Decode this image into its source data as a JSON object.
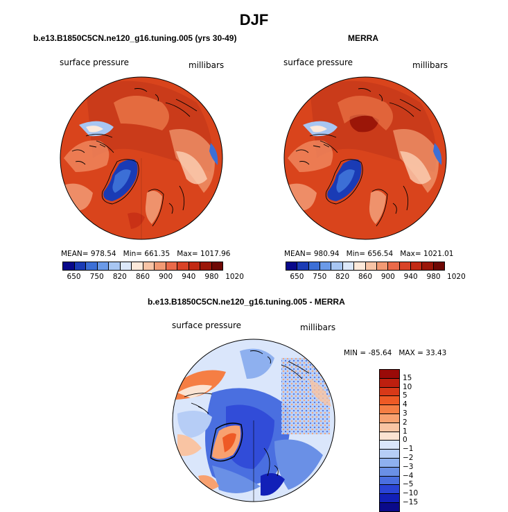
{
  "title": "DJF",
  "panels": [
    {
      "title": "b.e13.B1850C5CN.ne120_g16.tuning.005 (yrs 30-49)",
      "variable": "surface pressure",
      "units": "millibars",
      "mean_label": "MEAN=",
      "mean": "978.54",
      "min_label": "Min=",
      "min": "661.35",
      "max_label": "Max=",
      "max": "1017.96"
    },
    {
      "title": "MERRA",
      "variable": "surface pressure",
      "units": "millibars",
      "mean_label": "MEAN=",
      "mean": "980.94",
      "min_label": "Min=",
      "min": "656.54",
      "max_label": "Max=",
      "max": "1021.01"
    }
  ],
  "diff_panel": {
    "title": "b.e13.B1850C5CN.ne120_g16.tuning.005 - MERRA",
    "variable": "surface pressure",
    "units": "millibars",
    "min_label": "MIN =",
    "min": "-85.64",
    "max_label": "MAX =",
    "max": "33.43"
  },
  "abs_colorbar": {
    "tick_labels": [
      "650",
      "750",
      "820",
      "860",
      "900",
      "940",
      "980",
      "1020"
    ],
    "colors": [
      "#08088a",
      "#1a3bb5",
      "#3c6fd6",
      "#6b9ae8",
      "#a8c6f2",
      "#dce8fa",
      "#fde9da",
      "#f8c4a6",
      "#f29a74",
      "#ea6a4a",
      "#d94327",
      "#c22a14",
      "#9b1608",
      "#6e0804"
    ]
  },
  "diff_colorbar": {
    "tick_labels": [
      "15",
      "10",
      "5",
      "4",
      "3",
      "2",
      "1",
      "0",
      "−1",
      "−2",
      "−3",
      "−4",
      "−5",
      "−10",
      "−15"
    ],
    "colors": [
      "#9a0a08",
      "#bd1f0f",
      "#d83918",
      "#ee5a25",
      "#f57e44",
      "#f8a170",
      "#f9c4a3",
      "#fbe3d2",
      "#dae6fb",
      "#b6cdf6",
      "#8eb0ef",
      "#6a90e6",
      "#4a6fe0",
      "#2a44d6",
      "#1220b8",
      "#0a0a8a"
    ]
  }
}
